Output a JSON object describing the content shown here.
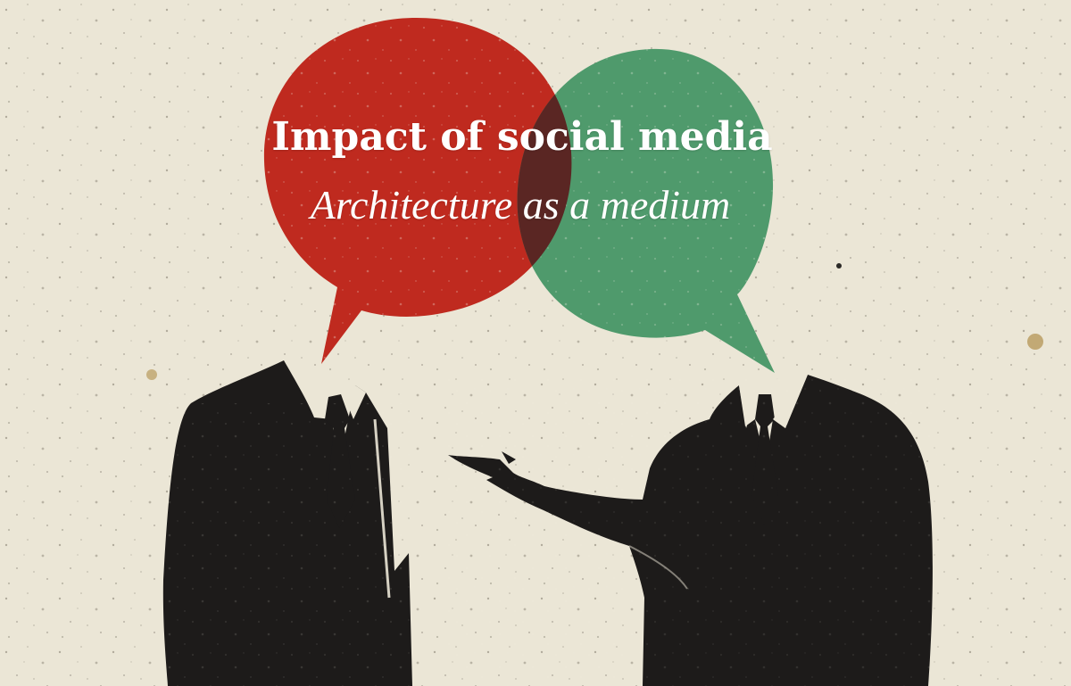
{
  "heading": {
    "title": "Impact of social media",
    "subtitle": "Architecture as a medium"
  },
  "palette": {
    "paper": "#ebe6d6",
    "red_bubble": "#bf2a1f",
    "green_bubble": "#4f9a6c",
    "overlap": "#5a2623",
    "suit": "#1d1b1a",
    "shirt": "#ebe6d6"
  },
  "illustration": {
    "icons": [
      "red-speech-bubble-icon",
      "green-speech-bubble-icon",
      "businessman-left-icon",
      "businessman-right-icon"
    ]
  }
}
